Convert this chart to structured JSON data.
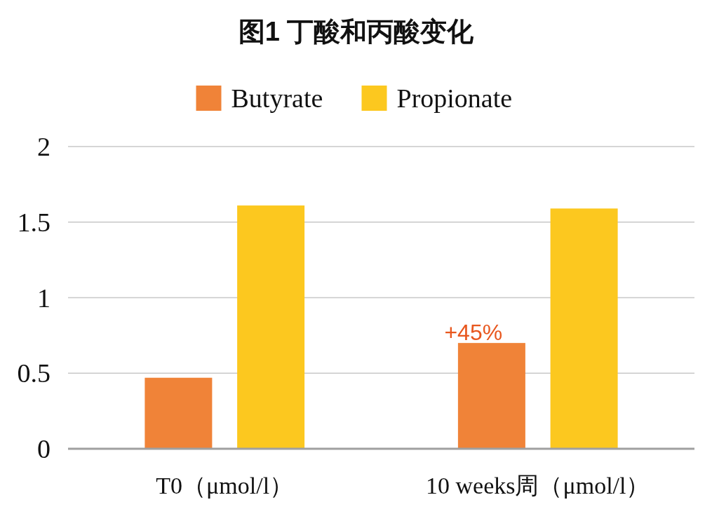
{
  "chart_data": {
    "type": "bar",
    "title": "图1  丁酸和丙酸变化",
    "categories": [
      "T0（μmol/l）",
      "10 weeks周（μmol/l）"
    ],
    "series": [
      {
        "name": "Butyrate",
        "color": "#f08338",
        "values": [
          0.47,
          0.7
        ]
      },
      {
        "name": "Propionate",
        "color": "#fcc81f",
        "values": [
          1.61,
          1.59
        ]
      }
    ],
    "ylim": [
      0,
      2
    ],
    "yticks": [
      0,
      0.5,
      1,
      1.5,
      2
    ],
    "grid": "y",
    "legend": "top",
    "annotations": [
      "+45%"
    ]
  }
}
